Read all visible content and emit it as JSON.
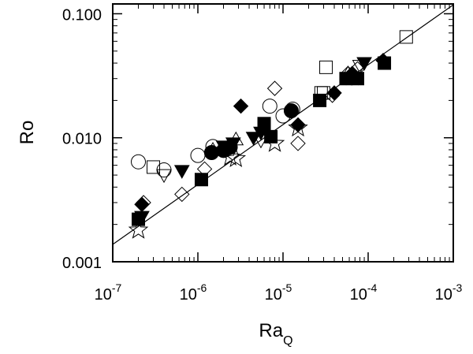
{
  "chart_data": {
    "type": "scatter",
    "title": "",
    "xlabel": "Ra",
    "xlabel_subscript": "Q",
    "ylabel": "Ro",
    "xscale": "log",
    "yscale": "log",
    "xlim": [
      1e-07,
      0.001
    ],
    "ylim": [
      0.001,
      0.12
    ],
    "x_ticks": [
      {
        "value": 1e-07,
        "base": "10",
        "exp": "-7"
      },
      {
        "value": 1e-06,
        "base": "10",
        "exp": "-6"
      },
      {
        "value": 1e-05,
        "base": "10",
        "exp": "-5"
      },
      {
        "value": 0.0001,
        "base": "10",
        "exp": "-4"
      },
      {
        "value": 0.001,
        "base": "10",
        "exp": "-3"
      }
    ],
    "y_ticks": [
      {
        "value": 0.001,
        "label": "0.001"
      },
      {
        "value": 0.01,
        "label": "0.010"
      },
      {
        "value": 0.1,
        "label": "0.100"
      }
    ],
    "grid": false,
    "legend": "none",
    "fit_line": {
      "x": [
        1e-07,
        0.001
      ],
      "y": [
        0.00138,
        0.118
      ]
    },
    "series": [
      {
        "marker": "circle",
        "filled": false,
        "points": [
          [
            2e-07,
            0.0064
          ],
          [
            4e-07,
            0.0055
          ],
          [
            1e-06,
            0.0072
          ],
          [
            1.5e-06,
            0.0085
          ],
          [
            2.1e-06,
            0.008
          ],
          [
            7e-06,
            0.018
          ],
          [
            1e-05,
            0.015
          ],
          [
            1.3e-05,
            0.017
          ]
        ]
      },
      {
        "marker": "circle",
        "filled": true,
        "points": [
          [
            1.45e-06,
            0.0076
          ],
          [
            2e-06,
            0.0079
          ],
          [
            2.4e-06,
            0.0084
          ],
          [
            1.25e-05,
            0.0165
          ]
        ]
      },
      {
        "marker": "square",
        "filled": false,
        "points": [
          [
            3e-07,
            0.0058
          ],
          [
            2.8e-05,
            0.023
          ],
          [
            3e-05,
            0.023
          ],
          [
            3.2e-05,
            0.037
          ],
          [
            0.00028,
            0.065
          ]
        ]
      },
      {
        "marker": "square",
        "filled": true,
        "points": [
          [
            2e-07,
            0.0022
          ],
          [
            1.1e-06,
            0.0046
          ],
          [
            6e-06,
            0.013
          ],
          [
            7.2e-06,
            0.0102
          ],
          [
            2.7e-05,
            0.02
          ],
          [
            5.5e-05,
            0.03
          ],
          [
            7.5e-05,
            0.03
          ],
          [
            0.000155,
            0.04
          ]
        ]
      },
      {
        "marker": "diamond",
        "filled": false,
        "points": [
          [
            2.3e-07,
            0.003
          ],
          [
            6.5e-07,
            0.0035
          ],
          [
            1.2e-06,
            0.0056
          ],
          [
            8e-06,
            0.025
          ],
          [
            1.5e-05,
            0.009
          ],
          [
            3.8e-05,
            0.022
          ],
          [
            5.8e-05,
            0.033
          ],
          [
            7.5e-05,
            0.036
          ]
        ]
      },
      {
        "marker": "diamond",
        "filled": true,
        "points": [
          [
            2.2e-07,
            0.0029
          ],
          [
            3.2e-06,
            0.018
          ],
          [
            1.5e-05,
            0.0127
          ],
          [
            4e-05,
            0.023
          ],
          [
            6.5e-05,
            0.033
          ],
          [
            0.00015,
            0.042
          ]
        ]
      },
      {
        "marker": "triangle-down",
        "filled": false,
        "points": [
          [
            4e-07,
            0.005
          ],
          [
            5.5e-06,
            0.0095
          ],
          [
            8e-05,
            0.038
          ]
        ]
      },
      {
        "marker": "triangle-down",
        "filled": true,
        "points": [
          [
            2.2e-07,
            0.0023
          ],
          [
            6.5e-07,
            0.0054
          ],
          [
            2e-06,
            0.0085
          ],
          [
            2.6e-06,
            0.009
          ],
          [
            4.5e-06,
            0.01
          ],
          [
            5.5e-06,
            0.011
          ],
          [
            9e-05,
            0.04
          ]
        ]
      },
      {
        "marker": "triangle-up",
        "filled": false,
        "points": [
          [
            1.5e-06,
            0.008
          ],
          [
            2.8e-06,
            0.0097
          ],
          [
            5.8e-05,
            0.033
          ]
        ]
      },
      {
        "marker": "star",
        "filled": false,
        "points": [
          [
            2e-07,
            0.0018
          ],
          [
            2.4e-06,
            0.007
          ],
          [
            2.8e-06,
            0.0068
          ],
          [
            1.5e-05,
            0.012
          ],
          [
            8e-06,
            0.009
          ],
          [
            6.5e-05,
            0.031
          ]
        ]
      }
    ]
  }
}
